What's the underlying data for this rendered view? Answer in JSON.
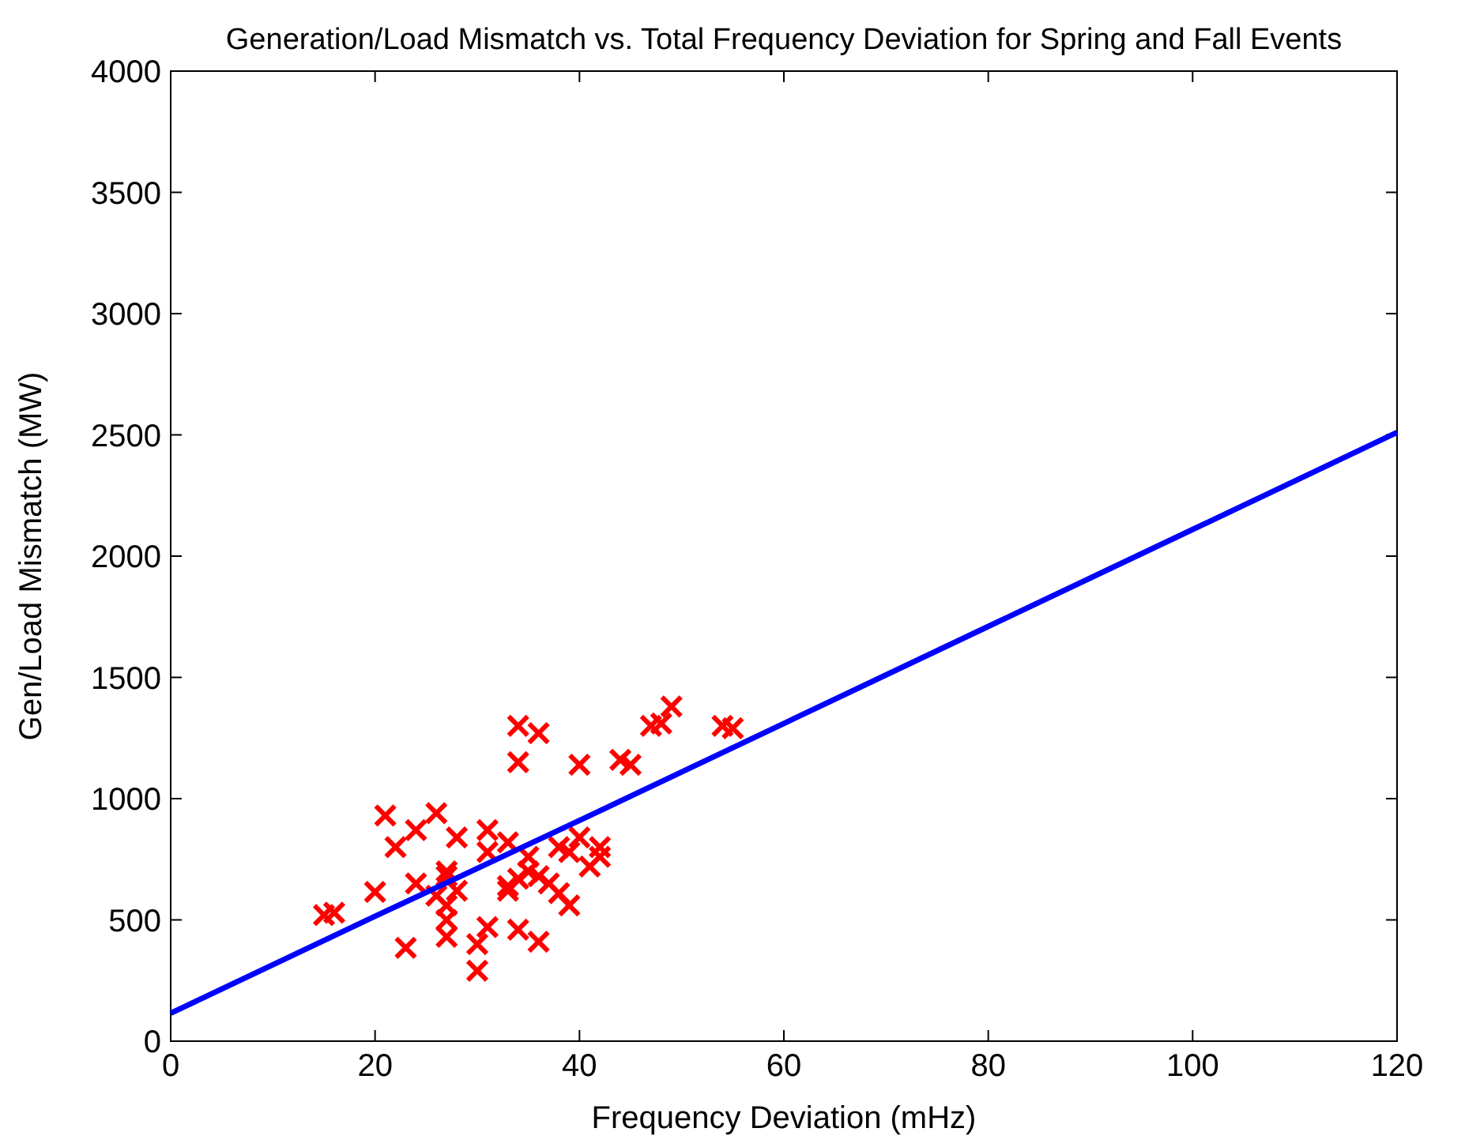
{
  "chart_data": {
    "type": "scatter",
    "title": "Generation/Load Mismatch vs. Total Frequency Deviation for Spring and Fall Events",
    "xlabel": "Frequency Deviation (mHz)",
    "ylabel": "Gen/Load Mismatch (MW)",
    "xlim": [
      0,
      120
    ],
    "ylim": [
      0,
      4000
    ],
    "xticks": [
      0,
      20,
      40,
      60,
      80,
      100,
      120
    ],
    "yticks": [
      0,
      500,
      1000,
      1500,
      2000,
      2500,
      3000,
      3500,
      4000
    ],
    "grid": false,
    "series": [
      {
        "color": "#ff0000",
        "marker": "cross",
        "x": [
          15,
          16,
          20,
          21,
          22,
          23,
          24,
          24,
          26,
          26,
          27,
          27,
          27,
          27,
          27,
          28,
          28,
          30,
          30,
          31,
          31,
          31,
          33,
          33,
          33,
          34,
          34,
          34,
          34,
          35,
          35,
          36,
          36,
          36,
          37,
          38,
          38,
          39,
          39,
          40,
          40,
          41,
          42,
          42,
          44,
          45,
          47,
          48,
          49,
          54,
          55
        ],
        "values": [
          520,
          530,
          615,
          930,
          800,
          385,
          870,
          650,
          940,
          600,
          700,
          680,
          560,
          500,
          430,
          840,
          620,
          400,
          290,
          870,
          780,
          470,
          820,
          640,
          620,
          1300,
          1150,
          670,
          460,
          760,
          700,
          1270,
          410,
          680,
          650,
          800,
          610,
          780,
          560,
          1140,
          840,
          720,
          800,
          760,
          1160,
          1140,
          1300,
          1310,
          1380,
          1300,
          1290
        ]
      },
      {
        "type": "line",
        "color": "#0000ff",
        "line_style": "solid",
        "marker": "none",
        "x": [
          0,
          20,
          40,
          60,
          80,
          100,
          120
        ],
        "values": [
          115,
          515,
          910,
          1310,
          1710,
          2110,
          2510
        ]
      }
    ]
  }
}
